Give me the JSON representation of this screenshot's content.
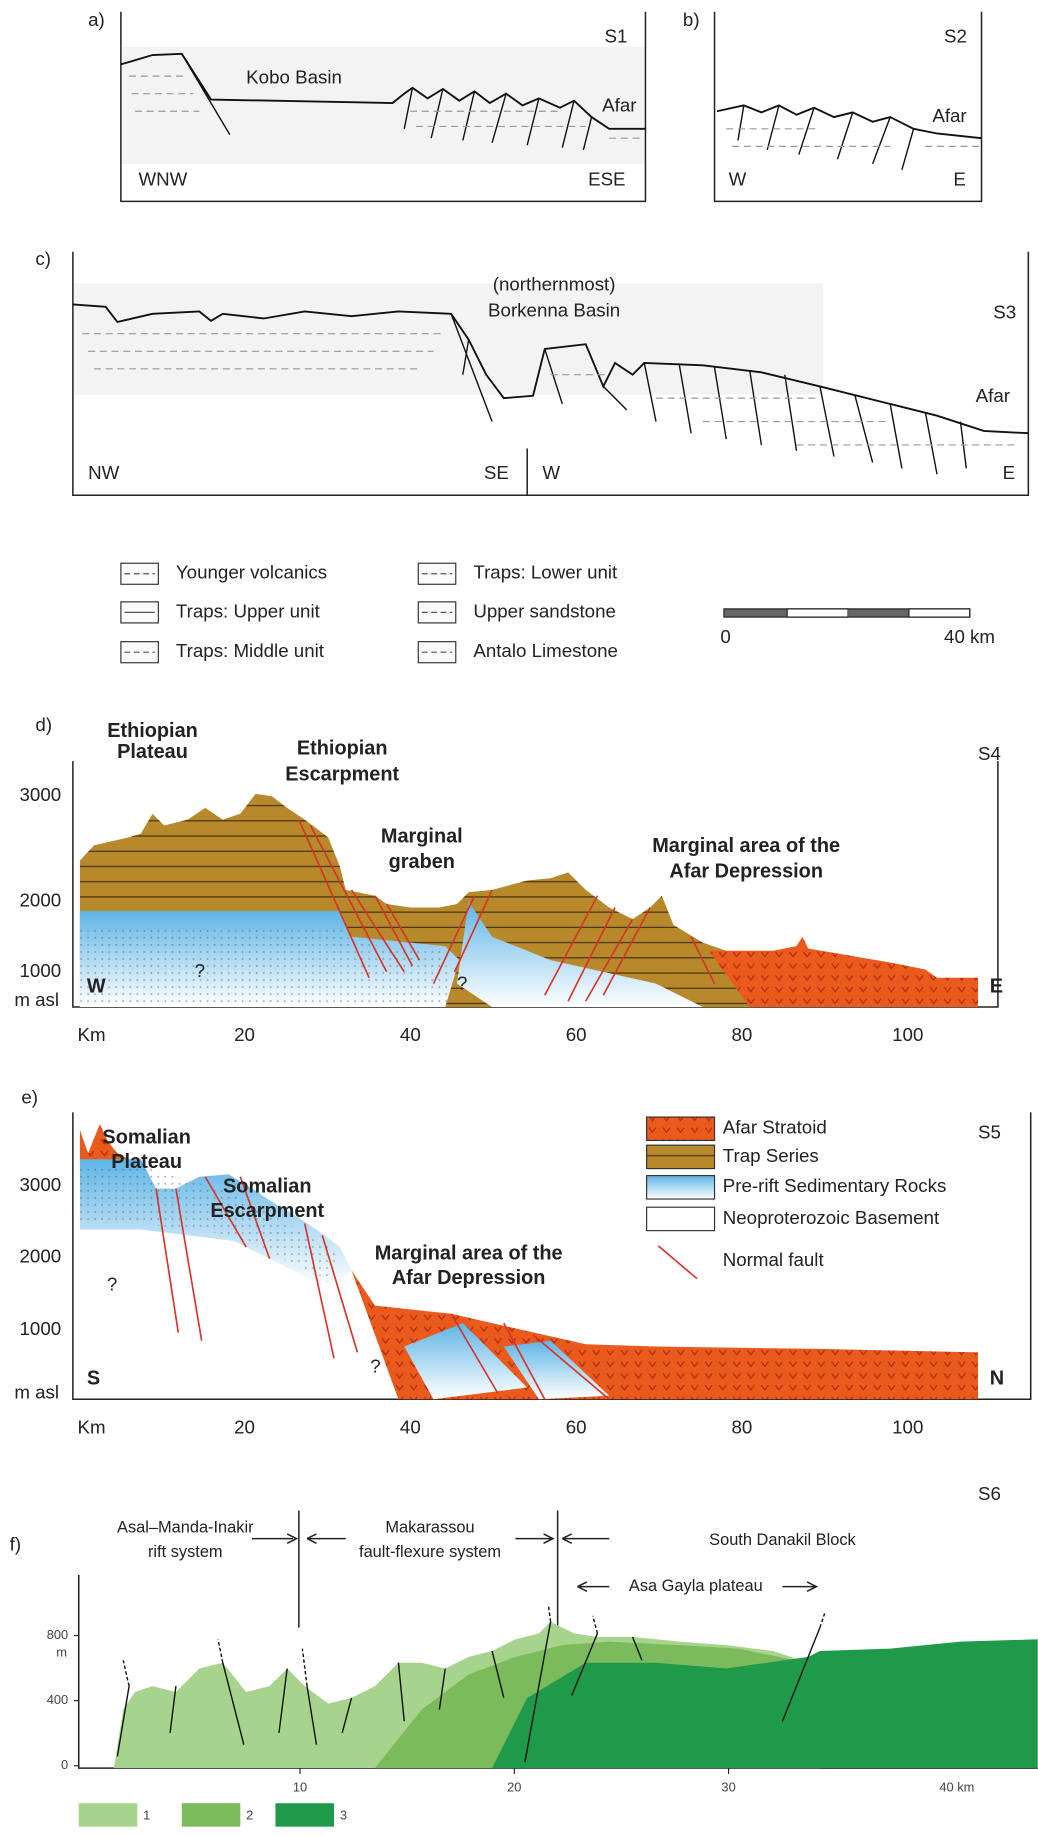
{
  "panel_a": {
    "letter": "a)",
    "section": "S1",
    "basin": "Kobo Basin",
    "afar": "Afar",
    "west": "WNW",
    "east": "ESE"
  },
  "panel_b": {
    "letter": "b)",
    "section": "S2",
    "afar": "Afar",
    "west": "W",
    "east": "E"
  },
  "panel_c": {
    "letter": "c)",
    "section": "S3",
    "basin": [
      "(northernmost)",
      "Borkenna Basin"
    ],
    "afar": "Afar",
    "nw": "NW",
    "se": "SE",
    "w": "W",
    "e": "E"
  },
  "legend_1": {
    "items": [
      "Younger volcanics",
      "Traps: Upper unit",
      "Traps: Middle unit",
      "Traps: Lower unit",
      "Upper sandstone",
      "Antalo Limestone"
    ],
    "scale_start": "0",
    "scale_end": "40 km"
  },
  "panel_d": {
    "letter": "d)",
    "section": "S4",
    "plateau": [
      "Ethiopian",
      "Plateau"
    ],
    "escarpment": [
      "Ethiopian",
      "Escarpment"
    ],
    "graben": [
      "Marginal",
      "graben"
    ],
    "margin": [
      "Marginal area of the",
      "Afar Depression"
    ],
    "west": "W",
    "east": "E",
    "unknown": [
      "?",
      "?"
    ],
    "y_unit": "m asl",
    "x_unit": "Km",
    "yticks": [
      3000,
      2000,
      1000
    ],
    "xticks": [
      20,
      40,
      60,
      80,
      100
    ]
  },
  "panel_e": {
    "letter": "e)",
    "section": "S5",
    "plateau": [
      "Somalian",
      "Plateau"
    ],
    "escarpment": [
      "Somalian",
      "Escarpment"
    ],
    "margin": [
      "Marginal area of the",
      "Afar Depression"
    ],
    "south": "S",
    "north": "N",
    "unknown": [
      "?",
      "?"
    ],
    "y_unit": "m asl",
    "x_unit": "Km",
    "yticks": [
      3000,
      2000,
      1000
    ],
    "xticks": [
      20,
      40,
      60,
      80,
      100
    ],
    "legend": [
      "Afar Stratoid",
      "Trap Series",
      "Pre-rift Sedimentary Rocks",
      "Neoproterozoic Basement",
      "Normal fault"
    ]
  },
  "panel_f": {
    "letter": "f)",
    "section": "S6",
    "rift": [
      "Asal–Manda-Inakir",
      "rift system"
    ],
    "flexure": [
      "Makarassou",
      "fault-flexure system"
    ],
    "block": "South Danakil Block",
    "plateau": "Asa Gayla plateau",
    "yticks": [
      800,
      400,
      0
    ],
    "y_unit": "m",
    "xticks": [
      10,
      20,
      30
    ],
    "x_end": "40 km",
    "legend": [
      "1",
      "2",
      "3"
    ]
  }
}
